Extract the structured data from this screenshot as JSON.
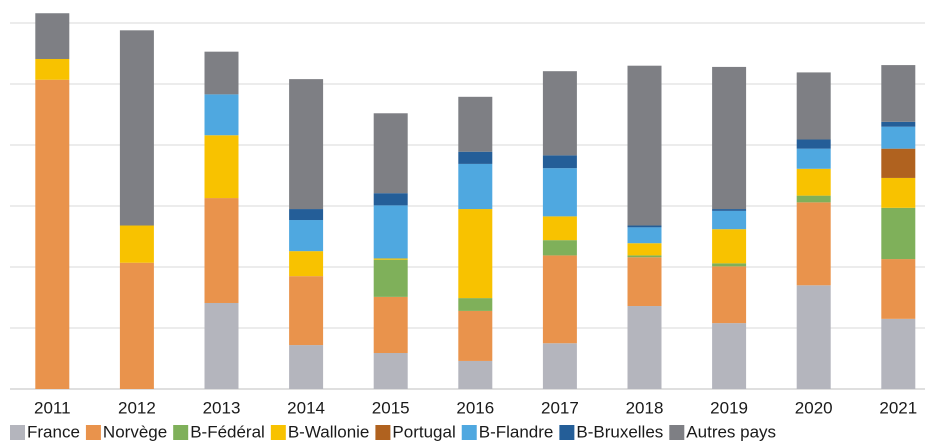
{
  "chart_data": {
    "type": "stacked_bar",
    "categories": [
      "2011",
      "2012",
      "2013",
      "2014",
      "2015",
      "2016",
      "2017",
      "2018",
      "2019",
      "2020",
      "2021"
    ],
    "series": [
      {
        "name": "France",
        "color": "#b4b5bd",
        "values": [
          0,
          0,
          14.1,
          7.2,
          5.9,
          4.6,
          7.5,
          13.6,
          10.8,
          17.0,
          11.5
        ]
      },
      {
        "name": "Norvège",
        "color": "#e9934c",
        "values": [
          50.7,
          20.7,
          17.2,
          11.3,
          9.2,
          8.2,
          14.4,
          8.0,
          9.3,
          13.6,
          9.8
        ]
      },
      {
        "name": "B-Fédéral",
        "color": "#7fb05a",
        "values": [
          0,
          0,
          0,
          0,
          6.1,
          2.1,
          2.5,
          0.3,
          0.5,
          1.1,
          8.4
        ]
      },
      {
        "name": "B-Wallonie",
        "color": "#f8c200",
        "values": [
          3.4,
          6.1,
          10.3,
          4.1,
          0.2,
          14.6,
          3.9,
          2.0,
          5.6,
          4.4,
          4.9
        ]
      },
      {
        "name": "Portugal",
        "color": "#b0621f",
        "values": [
          0,
          0,
          0,
          0,
          0,
          0,
          0,
          0,
          0,
          0,
          4.8
        ]
      },
      {
        "name": "B-Flandre",
        "color": "#4fa8e0",
        "values": [
          0,
          0,
          6.7,
          5.1,
          8.7,
          7.4,
          7.9,
          2.6,
          3.0,
          3.3,
          3.6
        ]
      },
      {
        "name": "B-Bruxelles",
        "color": "#245e98",
        "values": [
          0,
          0,
          0,
          1.8,
          2.0,
          2.0,
          2.1,
          0.3,
          0.3,
          1.5,
          0.8
        ]
      },
      {
        "name": "Autres pays",
        "color": "#7e7f84",
        "values": [
          7.5,
          32.0,
          7.0,
          21.3,
          13.1,
          9.0,
          13.8,
          26.2,
          23.3,
          11.0,
          9.3
        ]
      }
    ],
    "ylim": [
      0,
      62
    ],
    "yticks": [
      0,
      10,
      20,
      30,
      40,
      50,
      60
    ],
    "grid": true,
    "legend": "bottom"
  }
}
